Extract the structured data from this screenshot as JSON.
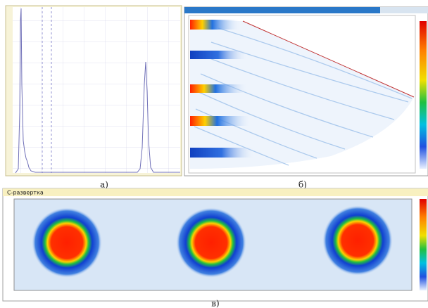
{
  "captions": {
    "a": "а)",
    "b": "б)",
    "c": "в)"
  },
  "panels": {
    "c_scan": {
      "title": "С-развертка"
    }
  }
}
